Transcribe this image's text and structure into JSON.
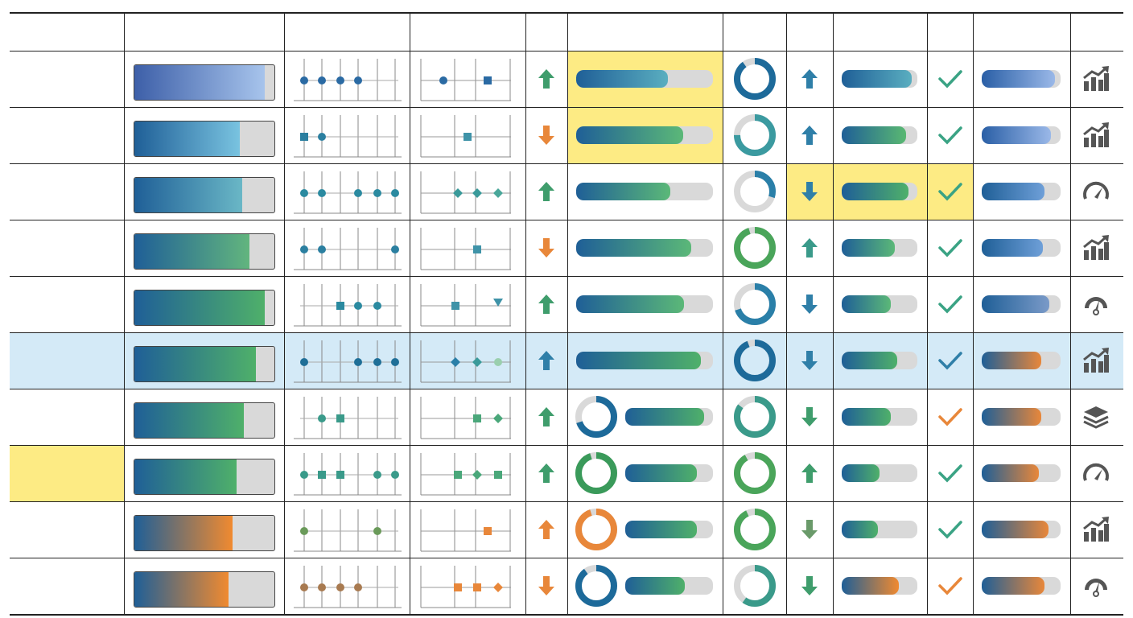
{
  "colors": {
    "grid_line": "#222222",
    "track": "#d9d9d9",
    "row_highlight": "#d4eaf7",
    "cell_highlight": "#fdeb84",
    "up_green": "#3f9d6c",
    "down_orange": "#e8873a",
    "up_blue": "#2f7fa8",
    "check_teal": "#3aa384",
    "check_orange": "#e8873a",
    "icon_gray": "#555555"
  },
  "rows": [
    {
      "progress": 0.93,
      "grad": [
        "#3d5fa8",
        "#a7c4ec"
      ],
      "dots": [
        "c",
        "c",
        "c",
        "c",
        null,
        null
      ],
      "dotColor": "#2a6aa3",
      "mini": [
        [
          "c",
          0.2,
          "#2a6aa3"
        ],
        [
          "s",
          0.75,
          "#2a6aa3"
        ]
      ],
      "trend1": "up",
      "t1color": "#3f9d6c",
      "bar2": 0.67,
      "bar2grad": [
        "#1f5f97",
        "#5aaec0"
      ],
      "bar2hl": true,
      "donutInBar": null,
      "donut": 0.9,
      "donutColor": "#1d6a9a",
      "trend2": "up",
      "t2color": "#2f7fa8",
      "bar3": 0.93,
      "bar3grad": [
        "#1f5f97",
        "#5aaec0"
      ],
      "bar3hl": false,
      "check": "teal",
      "checkhl": false,
      "bar4": 0.93,
      "bar4grad": [
        "#2a5fa6",
        "#9ab8e8"
      ],
      "icon": "chart-growth-icon"
    },
    {
      "progress": 0.75,
      "grad": [
        "#1f5f97",
        "#79c3e0"
      ],
      "dots": [
        "s",
        "c",
        null,
        null,
        null,
        null
      ],
      "dotColor": "#2b7fa0",
      "mini": [
        [
          "s",
          0.5,
          "#3f93a8"
        ]
      ],
      "trend1": "down",
      "t1color": "#e8873a",
      "bar2": 0.78,
      "bar2grad": [
        "#1f5f97",
        "#5bb878"
      ],
      "bar2hl": true,
      "donutInBar": null,
      "donut": 0.75,
      "donutColor": "#3b9aa0",
      "trend2": "up",
      "t2color": "#2f7fa8",
      "bar3": 0.85,
      "bar3grad": [
        "#1f5f97",
        "#59b872"
      ],
      "bar3hl": false,
      "check": "teal",
      "checkhl": false,
      "bar4": 0.88,
      "bar4grad": [
        "#2a5fa6",
        "#9ab8e8"
      ],
      "icon": "chart-growth-icon"
    },
    {
      "progress": 0.77,
      "grad": [
        "#1f5f97",
        "#6ab7c6"
      ],
      "dots": [
        "c",
        "c",
        null,
        "c",
        "c",
        "c"
      ],
      "dotColor": "#2b8aa0",
      "mini": [
        [
          "d",
          0.38,
          "#3a9a9a"
        ],
        [
          "d",
          0.62,
          "#3a9a9a"
        ],
        [
          "d",
          0.88,
          "#4aa79a"
        ]
      ],
      "trend1": "up",
      "t1color": "#3f9d6c",
      "bar2": 0.69,
      "bar2grad": [
        "#1f5f97",
        "#5bb878"
      ],
      "bar2hl": false,
      "donutInBar": null,
      "donut": 0.3,
      "donutColor": "#2a7fa8",
      "trend2": "down",
      "t2color": "#2f7fa8",
      "bar3": 0.88,
      "bar3grad": [
        "#1f5f97",
        "#4fb06a"
      ],
      "bar3hl": true,
      "check": "teal",
      "checkhl": true,
      "bar4": 0.8,
      "bar4grad": [
        "#1f5f97",
        "#6e9fd8"
      ],
      "icon": "gauge-icon"
    },
    {
      "progress": 0.82,
      "grad": [
        "#1f5f97",
        "#62b57e"
      ],
      "dots": [
        "c",
        "c",
        null,
        null,
        null,
        "c"
      ],
      "dotColor": "#2b7fa0",
      "mini": [
        [
          "s",
          0.62,
          "#3f93a8"
        ]
      ],
      "trend1": "down",
      "t1color": "#e8873a",
      "bar2": 0.84,
      "bar2grad": [
        "#1f5f97",
        "#5bb878"
      ],
      "bar2hl": false,
      "donutInBar": null,
      "donut": 0.95,
      "donutColor": "#4aa55a",
      "trend2": "up",
      "t2color": "#3a9a8a",
      "bar3": 0.7,
      "bar3grad": [
        "#1f5f97",
        "#5bb878"
      ],
      "bar3hl": false,
      "check": "teal",
      "checkhl": false,
      "bar4": 0.78,
      "bar4grad": [
        "#1f5f97",
        "#6e9fd8"
      ],
      "icon": "chart-growth-icon"
    },
    {
      "progress": 0.93,
      "grad": [
        "#1f5f97",
        "#4fb06a"
      ],
      "dots": [
        null,
        null,
        "s",
        "c",
        "c",
        null
      ],
      "dotColor": "#2b8aa0",
      "mini": [
        [
          "s",
          0.35,
          "#3f93a8"
        ],
        [
          "t",
          0.88,
          "#3f93a8"
        ]
      ],
      "trend1": "up",
      "t1color": "#3f9d6c",
      "bar2": 0.79,
      "bar2grad": [
        "#1f5f97",
        "#5bb878"
      ],
      "bar2hl": false,
      "donutInBar": null,
      "donut": 0.7,
      "donutColor": "#2a7fa8",
      "trend2": "down",
      "t2color": "#2f7fa8",
      "bar3": 0.65,
      "bar3grad": [
        "#1f5f97",
        "#5bb878"
      ],
      "bar3hl": false,
      "check": "teal",
      "checkhl": false,
      "bar4": 0.86,
      "bar4grad": [
        "#1f5f97",
        "#7a9ac8"
      ],
      "icon": "speedometer-icon"
    },
    {
      "progress": 0.87,
      "grad": [
        "#1f5f97",
        "#4fb06a"
      ],
      "dots": [
        "c",
        null,
        null,
        "c",
        "c",
        "c"
      ],
      "dotColor": "#1f6f97",
      "mini": [
        [
          "d",
          0.35,
          "#2a7fa8"
        ],
        [
          "d",
          0.62,
          "#3a9a9a"
        ],
        [
          "c",
          0.88,
          "#9acfae"
        ]
      ],
      "trend1": "up",
      "t1color": "#2f7fa8",
      "bar2": 0.91,
      "bar2grad": [
        "#1f5f97",
        "#4fb06a"
      ],
      "bar2hl": false,
      "donutInBar": null,
      "donut": 0.94,
      "donutColor": "#1d6a9a",
      "trend2": "down",
      "t2color": "#2f7fa8",
      "bar3": 0.73,
      "bar3grad": [
        "#1f5f97",
        "#4fb06a"
      ],
      "bar3hl": false,
      "check": "blue",
      "checkhl": false,
      "bar4": 0.75,
      "bar4grad": [
        "#1f5f97",
        "#e8873a"
      ],
      "icon": "chart-growth-icon",
      "rowhl": true
    },
    {
      "progress": 0.78,
      "grad": [
        "#1f5f97",
        "#4fb06a"
      ],
      "dots": [
        null,
        "c",
        "s",
        null,
        null,
        null
      ],
      "dotColor": "#3a9a8a",
      "mini": [
        [
          "s",
          0.62,
          "#4aa77a"
        ],
        [
          "d",
          0.88,
          "#4aa77a"
        ]
      ],
      "trend1": "up",
      "t1color": "#3f9d6c",
      "bar2": 0.9,
      "bar2grad": [
        "#1f5f97",
        "#4fb06a"
      ],
      "bar2hl": false,
      "donutInBar": [
        0.7,
        "#1d6a9a"
      ],
      "donut": 0.85,
      "donutColor": "#3a9a8a",
      "trend2": "down",
      "t2color": "#3f9d6c",
      "bar3": 0.65,
      "bar3grad": [
        "#1f5f97",
        "#4fb06a"
      ],
      "bar3hl": false,
      "check": "orange",
      "checkhl": false,
      "bar4": 0.75,
      "bar4grad": [
        "#1f5f97",
        "#e8873a"
      ],
      "icon": "layers-icon"
    },
    {
      "progress": 0.73,
      "grad": [
        "#1f5f97",
        "#4fb06a"
      ],
      "dots": [
        "c",
        "s",
        "s",
        null,
        "c",
        "c"
      ],
      "dotColor": "#3a9a8a",
      "mini": [
        [
          "s",
          0.38,
          "#4aa77a"
        ],
        [
          "d",
          0.62,
          "#4aa77a"
        ],
        [
          "s",
          0.88,
          "#4aa77a"
        ]
      ],
      "trend1": "up",
      "t1color": "#3f9d6c",
      "bar2": 0.82,
      "bar2grad": [
        "#1f5f97",
        "#4fb06a"
      ],
      "bar2hl": false,
      "donutInBar": [
        0.95,
        "#3a9a5a"
      ],
      "donut": 0.92,
      "donutColor": "#4aa55a",
      "trend2": "up",
      "t2color": "#3f9d6c",
      "bar3": 0.5,
      "bar3grad": [
        "#1f5f97",
        "#4fb06a"
      ],
      "bar3hl": false,
      "check": "teal",
      "checkhl": false,
      "bar4": 0.72,
      "bar4grad": [
        "#1f5f97",
        "#e8873a"
      ],
      "icon": "gauge-icon",
      "labelhl": true
    },
    {
      "progress": 0.7,
      "grad": [
        "#1f5f97",
        "#f08a30"
      ],
      "dots": [
        "c",
        null,
        null,
        null,
        "c",
        null
      ],
      "dotColor": "#6a9a5a",
      "mini": [
        [
          "s",
          0.75,
          "#e8873a"
        ]
      ],
      "trend1": "up",
      "t1color": "#e8873a",
      "bar2": 0.82,
      "bar2grad": [
        "#1f5f97",
        "#4fb06a"
      ],
      "bar2hl": false,
      "donutInBar": [
        0.95,
        "#e8873a"
      ],
      "donut": 0.93,
      "donutColor": "#4aa55a",
      "trend2": "down",
      "t2color": "#6a9a6a",
      "bar3": 0.48,
      "bar3grad": [
        "#1f5f97",
        "#4fb06a"
      ],
      "bar3hl": false,
      "check": "teal",
      "checkhl": false,
      "bar4": 0.85,
      "bar4grad": [
        "#1f5f97",
        "#e8873a"
      ],
      "icon": "chart-growth-icon"
    },
    {
      "progress": 0.67,
      "grad": [
        "#1f5f97",
        "#f08a30"
      ],
      "dots": [
        "c",
        "c",
        "c",
        "c",
        null,
        null
      ],
      "dotColor": "#a87a50",
      "mini": [
        [
          "s",
          0.38,
          "#e8873a"
        ],
        [
          "s",
          0.62,
          "#e8873a"
        ],
        [
          "d",
          0.88,
          "#e8873a"
        ]
      ],
      "trend1": "down",
      "t1color": "#e8873a",
      "bar2": 0.68,
      "bar2grad": [
        "#1f5f97",
        "#4fb06a"
      ],
      "bar2hl": false,
      "donutInBar": [
        0.9,
        "#1d6a9a"
      ],
      "donut": 0.6,
      "donutColor": "#3a9a8a",
      "trend2": "down",
      "t2color": "#3f9d6c",
      "bar3": 0.75,
      "bar3grad": [
        "#1f5f97",
        "#f08a30"
      ],
      "bar3hl": false,
      "check": "orange",
      "checkhl": false,
      "bar4": 0.8,
      "bar4grad": [
        "#1f5f97",
        "#e8873a"
      ],
      "icon": "speedometer-icon"
    }
  ]
}
